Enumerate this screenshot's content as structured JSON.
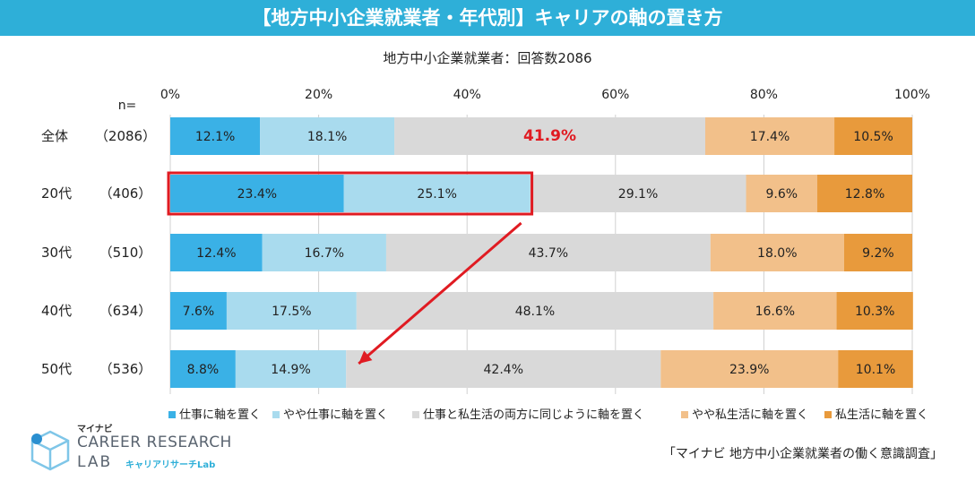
{
  "header": {
    "title": "【地方中小企業就業者・年代別】キャリアの軸の置き方",
    "subtitle": "地方中小企業就業者：回答数2086"
  },
  "colors": {
    "banner": "#2eafd8",
    "highlight": "#e01b22"
  },
  "chart_data": {
    "type": "bar",
    "orientation": "horizontal",
    "stacked": true,
    "normalized_percent": true,
    "n_label": "n=",
    "xlim": [
      0,
      100
    ],
    "x_ticks": [
      "0%",
      "20%",
      "40%",
      "60%",
      "80%",
      "100%"
    ],
    "categories": [
      "全体",
      "20代",
      "30代",
      "40代",
      "50代"
    ],
    "counts": [
      "（2086）",
      "（406）",
      "（510）",
      "（634）",
      "（536）"
    ],
    "series": [
      {
        "name": "仕事に軸を置く",
        "color": "#3ab1e6",
        "values": [
          12.1,
          23.4,
          12.4,
          7.6,
          8.8
        ]
      },
      {
        "name": "やや仕事に軸を置く",
        "color": "#a9dbee",
        "values": [
          18.1,
          25.1,
          16.7,
          17.5,
          14.9
        ]
      },
      {
        "name": "仕事と私生活の両方に同じように軸を置く",
        "color": "#d9d9d9",
        "values": [
          41.9,
          29.1,
          43.7,
          48.1,
          42.4
        ]
      },
      {
        "name": "やや私生活に軸を置く",
        "color": "#f2c08a",
        "values": [
          17.4,
          9.6,
          18.0,
          16.6,
          23.9
        ]
      },
      {
        "name": "私生活に軸を置く",
        "color": "#e89a3c",
        "values": [
          10.5,
          12.8,
          9.2,
          10.3,
          10.1
        ]
      }
    ],
    "legend_position": "bottom",
    "emphasis": "41.9%",
    "highlighted_row": "20代"
  },
  "footer": {
    "logo_brand": "マイナビ",
    "logo_line1": "CAREER RESEARCH",
    "logo_line2": "LAB",
    "logo_sub": "キャリアリサーチLab",
    "source": "「マイナビ 地方中小企業就業者の働く意識調査」"
  }
}
